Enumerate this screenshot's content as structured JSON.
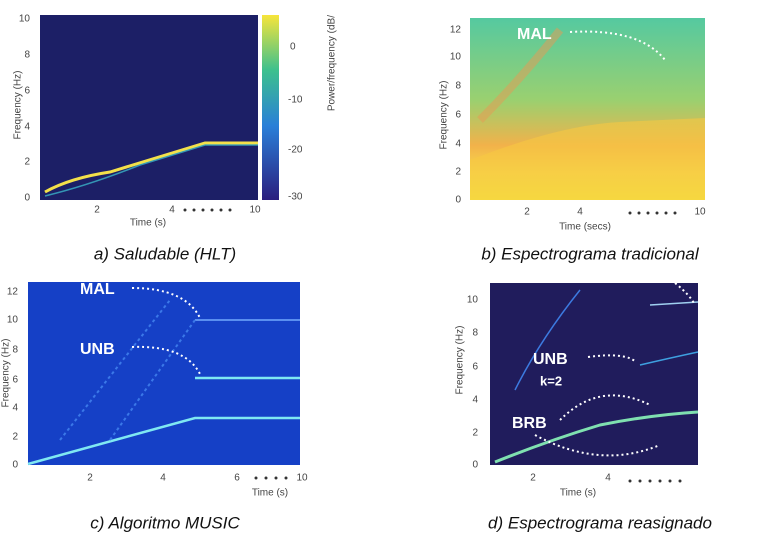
{
  "panels": [
    {
      "caption": "a) Saludable (HLT)",
      "y_label": "Frequency (Hz)",
      "x_label": "Time (s)",
      "y_ticks": [
        "0",
        "2",
        "4",
        "6",
        "8",
        "10"
      ],
      "x_ticks": [
        "2",
        "4",
        "10"
      ],
      "colorbar_label": "Power/frequency (dB/",
      "colorbar_ticks": [
        "0",
        "-10",
        "-20",
        "-30"
      ]
    },
    {
      "caption": "b) Espectrograma tradicional",
      "y_label": "Frequency (Hz)",
      "x_label": "Time (secs)",
      "y_ticks": [
        "0",
        "2",
        "4",
        "6",
        "8",
        "10",
        "12"
      ],
      "x_ticks": [
        "2",
        "4",
        "10"
      ],
      "annotations": [
        "MAL"
      ]
    },
    {
      "caption": "c) Algoritmo MUSIC",
      "y_label": "Frequency (Hz)",
      "x_label": "Time (s)",
      "y_ticks": [
        "0",
        "2",
        "4",
        "6",
        "8",
        "10",
        "12"
      ],
      "x_ticks": [
        "2",
        "4",
        "6",
        "10"
      ],
      "annotations": [
        "MAL",
        "UNB"
      ]
    },
    {
      "caption": "d) Espectrograma reasignado",
      "y_label": "Frequency (Hz)",
      "x_label": "Time (s)",
      "y_ticks": [
        "0",
        "2",
        "4",
        "6",
        "8",
        "10"
      ],
      "x_ticks": [
        "2",
        "4"
      ],
      "annotations": [
        "UNB",
        "k=2",
        "BRB"
      ]
    }
  ]
}
